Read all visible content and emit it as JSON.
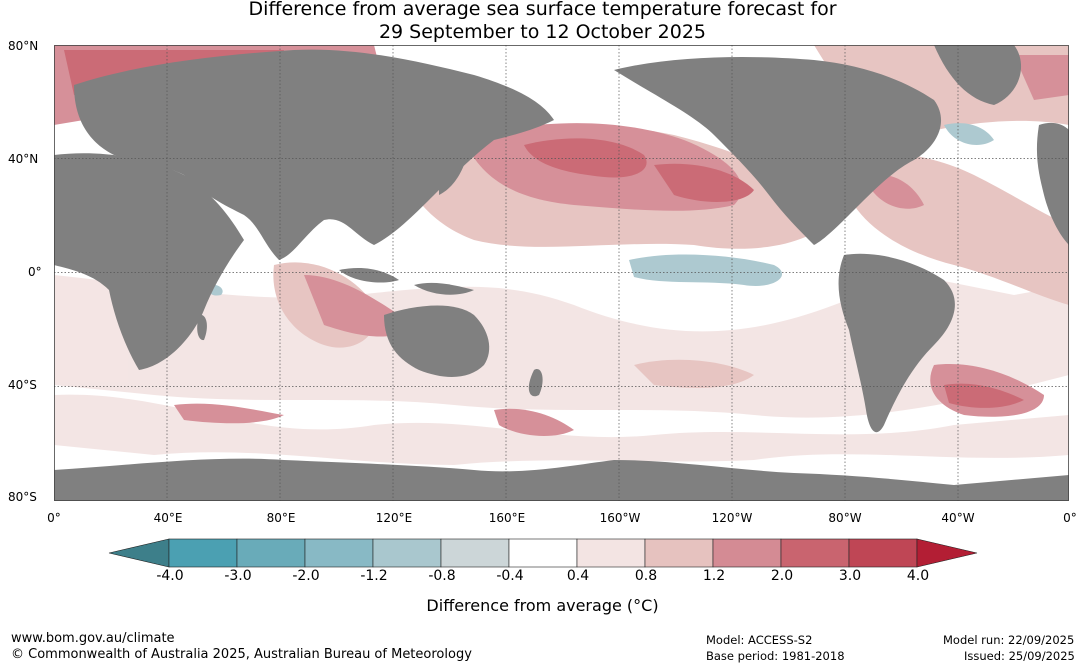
{
  "title": {
    "line1": "Difference from average sea surface temperature forecast for",
    "line2": "29 September to 12 October 2025"
  },
  "map": {
    "lat_labels": [
      "80°N",
      "40°N",
      "0°",
      "40°S",
      "80°S"
    ],
    "lon_labels": [
      "0°",
      "40°E",
      "80°E",
      "120°E",
      "160°E",
      "160°W",
      "120°W",
      "80°W",
      "40°W",
      "0°"
    ],
    "land_color": "#808080",
    "grid": "dotted"
  },
  "colorbar": {
    "tick_labels": [
      "-4.0",
      "-3.0",
      "-2.0",
      "-1.2",
      "-0.8",
      "-0.4",
      "0.4",
      "0.8",
      "1.2",
      "2.0",
      "3.0",
      "4.0"
    ],
    "under_color": "#3d7f8a",
    "over_color": "#b31e34",
    "colors": [
      "#4ba0b2",
      "#69abb9",
      "#88b9c5",
      "#a9c7ce",
      "#ccd6d8",
      "#ffffff",
      "#f3e4e3",
      "#e6c2bf",
      "#d48b94",
      "#c9646f",
      "#bf4655"
    ],
    "label": "Difference from average (°C)"
  },
  "footer": {
    "website": "www.bom.gov.au/climate",
    "copyright": "© Commonwealth of Australia 2025, Australian Bureau of Meteorology",
    "model": "Model: ACCESS-S2",
    "base_period": "Base period: 1981-2018",
    "model_run": "Model run: 22/09/2025",
    "issued": "Issued: 25/09/2025"
  }
}
